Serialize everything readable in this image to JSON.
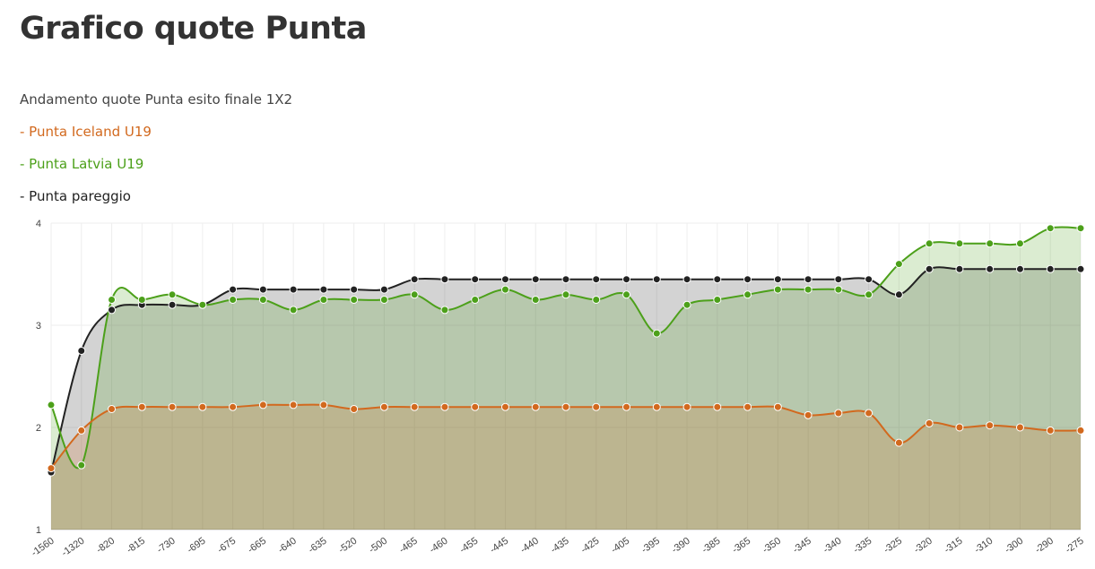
{
  "chart_data": {
    "type": "area",
    "title": "Grafico quote Punta",
    "subtitle": "Andamento quote Punta esito finale 1X2",
    "categories": [
      "-1560",
      "-1320",
      "-820",
      "-815",
      "-730",
      "-695",
      "-675",
      "-665",
      "-640",
      "-635",
      "-520",
      "-500",
      "-465",
      "-460",
      "-455",
      "-445",
      "-440",
      "-435",
      "-425",
      "-405",
      "-395",
      "-390",
      "-385",
      "-365",
      "-350",
      "-345",
      "-340",
      "-335",
      "-325",
      "-320",
      "-315",
      "-310",
      "-300",
      "-290",
      "-275"
    ],
    "series": [
      {
        "name": "- Punta Iceland U19",
        "color": "#d2691e",
        "values": [
          1.6,
          1.97,
          2.18,
          2.2,
          2.2,
          2.2,
          2.2,
          2.22,
          2.22,
          2.22,
          2.18,
          2.2,
          2.2,
          2.2,
          2.2,
          2.2,
          2.2,
          2.2,
          2.2,
          2.2,
          2.2,
          2.2,
          2.2,
          2.2,
          2.2,
          2.12,
          2.14,
          2.14,
          1.85,
          2.04,
          2.0,
          2.02,
          2.0,
          1.97,
          1.97
        ]
      },
      {
        "name": "- Punta Latvia U19",
        "color": "#4ca01a",
        "values": [
          2.22,
          1.63,
          3.25,
          3.25,
          3.3,
          3.2,
          3.25,
          3.25,
          3.15,
          3.25,
          3.25,
          3.25,
          3.3,
          3.15,
          3.25,
          3.35,
          3.25,
          3.3,
          3.25,
          3.3,
          2.92,
          3.2,
          3.25,
          3.3,
          3.35,
          3.35,
          3.35,
          3.3,
          3.6,
          3.8,
          3.8,
          3.8,
          3.8,
          3.95,
          3.95
        ]
      },
      {
        "name": "- Punta pareggio",
        "color": "#222222",
        "values": [
          1.56,
          2.75,
          3.15,
          3.2,
          3.2,
          3.2,
          3.35,
          3.35,
          3.35,
          3.35,
          3.35,
          3.35,
          3.45,
          3.45,
          3.45,
          3.45,
          3.45,
          3.45,
          3.45,
          3.45,
          3.45,
          3.45,
          3.45,
          3.45,
          3.45,
          3.45,
          3.45,
          3.45,
          3.3,
          3.55,
          3.55,
          3.55,
          3.55,
          3.55,
          3.55
        ]
      }
    ],
    "ylim": [
      1,
      4
    ],
    "yticks": [
      1,
      2,
      3,
      4
    ],
    "grid": true
  }
}
